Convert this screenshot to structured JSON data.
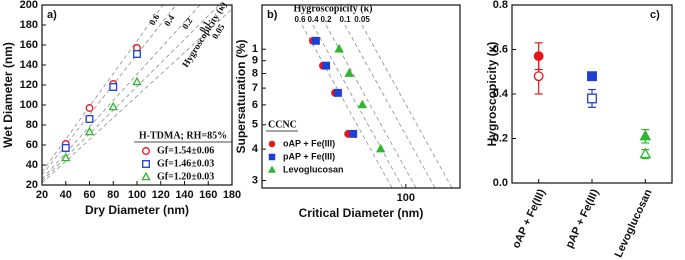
{
  "chart_data": [
    {
      "type": "scatter",
      "panel_label": "a)",
      "xlabel": "Dry Diameter (nm)",
      "ylabel": "Wet Diameter (nm)",
      "xlim": [
        20,
        180
      ],
      "xticks": [
        20,
        40,
        60,
        80,
        100,
        120,
        140,
        160,
        180
      ],
      "ylim": [
        20,
        200
      ],
      "yticks": [
        20,
        40,
        60,
        80,
        100,
        120,
        140,
        160,
        180,
        200
      ],
      "kappa_title": "Hygroscopicity (κ)",
      "kappa_labels": [
        0.6,
        0.4,
        0.2,
        0.1,
        0.05
      ],
      "legend_title": "H-TDMA; RH=85%",
      "series": [
        {
          "name": "Gf=1.54±0.06",
          "color": "#e8141c",
          "marker": "circle",
          "filled": false,
          "x": [
            40,
            60,
            80,
            100
          ],
          "values": [
            61,
            97,
            121,
            157
          ]
        },
        {
          "name": "Gf=1.46±0.03",
          "color": "#1f3fd6",
          "marker": "square",
          "filled": false,
          "x": [
            40,
            60,
            80,
            100
          ],
          "values": [
            57,
            86,
            118,
            151
          ]
        },
        {
          "name": "Gf=1.20±0.03",
          "color": "#2db82d",
          "marker": "triangle",
          "filled": false,
          "x": [
            40,
            60,
            80,
            100
          ],
          "values": [
            47,
            73,
            98,
            123
          ]
        }
      ]
    },
    {
      "type": "scatter",
      "panel_label": "b)",
      "xlabel": "Critical Diameter (nm)",
      "ylabel": "Supersaturation (%)",
      "x_log": true,
      "y_log": true,
      "xlim": [
        21,
        180
      ],
      "xticks": [
        100
      ],
      "ylim": [
        0.28,
        1.5
      ],
      "yticks": [
        {
          "value": 0.3,
          "label": "3"
        },
        {
          "value": 0.4,
          "label": "4"
        },
        {
          "value": 0.5,
          "label": "5"
        },
        {
          "value": 0.6,
          "label": "6"
        },
        {
          "value": 0.7,
          "label": "7"
        },
        {
          "value": 0.8,
          "label": "8"
        },
        {
          "value": 0.9,
          "label": "9"
        },
        1
      ],
      "kappa_title": "Hygroscopicity (κ)",
      "kappa_labels": [
        0.6,
        0.4,
        0.2,
        0.1,
        0.05
      ],
      "legend_title": "CCNC",
      "series": [
        {
          "name": "oAP + Fe(III)",
          "color": "#e8141c",
          "marker": "circle",
          "filled": true,
          "x": [
            36.5,
            40.7,
            46.4,
            53.5
          ],
          "values": [
            1.08,
            0.86,
            0.67,
            0.46
          ]
        },
        {
          "name": "pAP + Fe(III)",
          "color": "#1f3fd6",
          "marker": "square",
          "filled": true,
          "x": [
            37.7,
            42.1,
            47.9,
            56.5
          ],
          "values": [
            1.08,
            0.86,
            0.67,
            0.46
          ]
        },
        {
          "name": "Levoglucosan",
          "color": "#2db82d",
          "marker": "triangle",
          "filled": true,
          "x": [
            48.5,
            54.1,
            62.4,
            76.1
          ],
          "values": [
            1.0,
            0.8,
            0.6,
            0.4
          ]
        }
      ]
    },
    {
      "type": "errorbar",
      "panel_label": "c)",
      "ylabel": "Hygroscopicity (κ)",
      "categories": [
        "oAP + Fe(III)",
        "pAP + Fe(III)",
        "Levoglucosan"
      ],
      "colors": [
        "#e8141c",
        "#1f3fd6",
        "#2db82d"
      ],
      "markers": [
        "circle",
        "square",
        "triangle"
      ],
      "ylim": [
        0,
        0.8
      ],
      "yticks": [
        {
          "value": 0,
          "label": "0.0"
        },
        0.2,
        0.4,
        0.6,
        0.8
      ],
      "series": [
        {
          "filled": true,
          "values": [
            0.57,
            0.48,
            0.21
          ],
          "errors": [
            0.06,
            0.01,
            0.03
          ]
        },
        {
          "filled": false,
          "values": [
            0.48,
            0.38,
            0.13
          ],
          "errors": [
            0.08,
            0.04,
            0.02
          ]
        }
      ]
    }
  ]
}
